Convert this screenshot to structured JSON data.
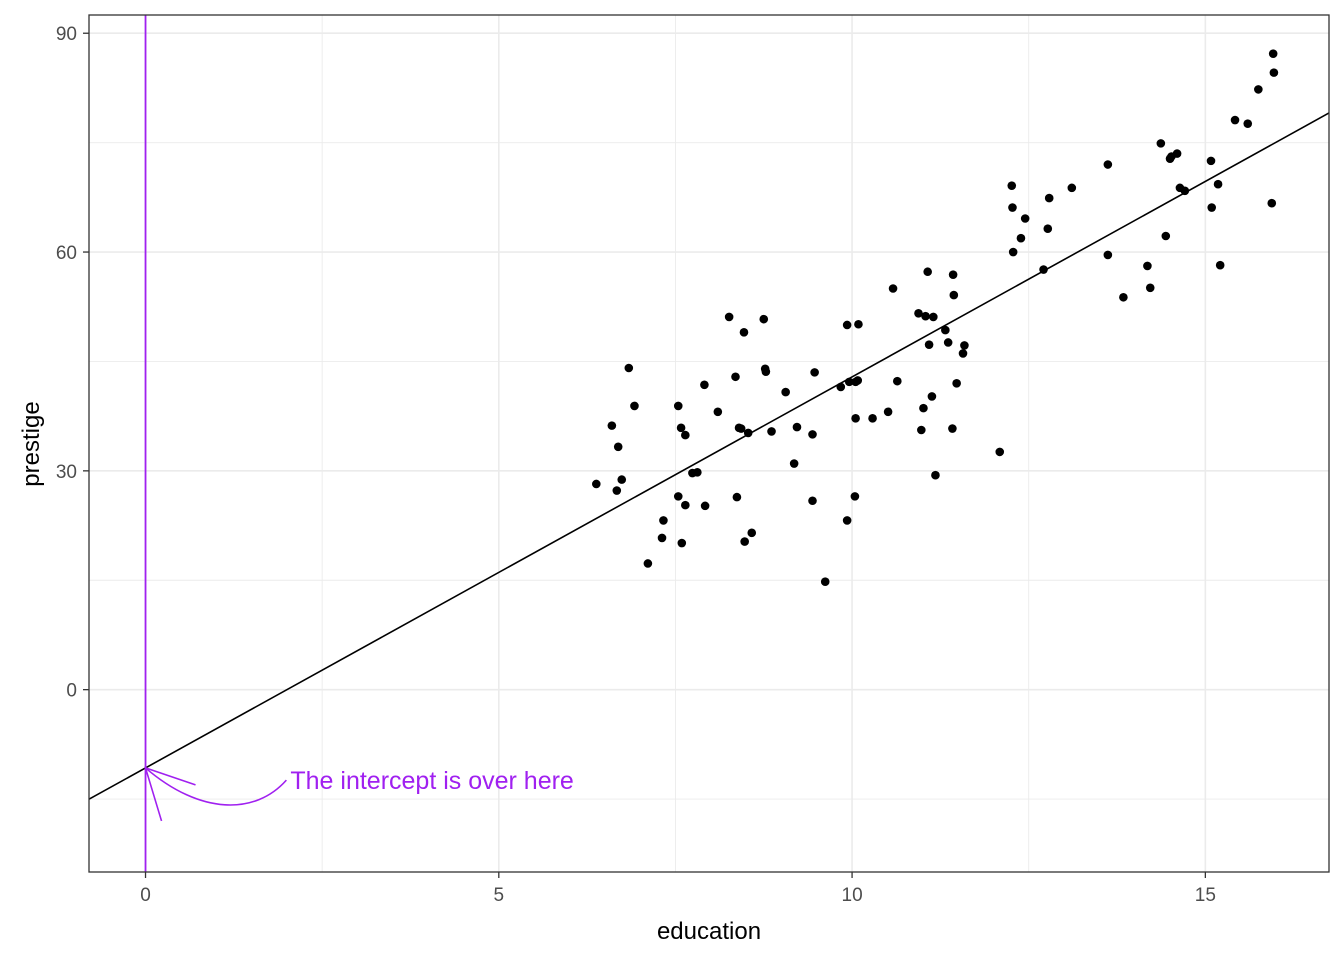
{
  "chart_data": {
    "type": "scatter",
    "xlabel": "education",
    "ylabel": "prestige",
    "xlim": [
      -0.8,
      16.75
    ],
    "ylim": [
      -25,
      92.5
    ],
    "x_ticks": [
      0,
      5,
      10,
      15
    ],
    "x_tick_labels": [
      "0",
      "5",
      "10",
      "15"
    ],
    "y_ticks": [
      0,
      30,
      60,
      90
    ],
    "y_tick_labels": [
      "0",
      "30",
      "60",
      "90"
    ],
    "grid": true,
    "points": [
      [
        6.38,
        28.2
      ],
      [
        6.6,
        36.2
      ],
      [
        6.67,
        27.3
      ],
      [
        6.69,
        33.3
      ],
      [
        6.74,
        28.8
      ],
      [
        6.84,
        44.1
      ],
      [
        6.92,
        38.9
      ],
      [
        7.11,
        17.3
      ],
      [
        7.31,
        20.8
      ],
      [
        7.33,
        23.2
      ],
      [
        7.54,
        38.9
      ],
      [
        7.58,
        35.9
      ],
      [
        7.59,
        20.1
      ],
      [
        7.64,
        34.9
      ],
      [
        7.64,
        25.3
      ],
      [
        7.54,
        26.5
      ],
      [
        7.74,
        29.7
      ],
      [
        7.81,
        29.8
      ],
      [
        7.91,
        41.8
      ],
      [
        7.92,
        25.2
      ],
      [
        8.1,
        38.1
      ],
      [
        8.26,
        51.1
      ],
      [
        8.35,
        42.9
      ],
      [
        8.37,
        26.4
      ],
      [
        8.4,
        35.9
      ],
      [
        8.43,
        35.8
      ],
      [
        8.47,
        49.0
      ],
      [
        8.48,
        20.3
      ],
      [
        8.53,
        35.2
      ],
      [
        8.58,
        21.5
      ],
      [
        8.75,
        50.8
      ],
      [
        8.78,
        43.6
      ],
      [
        8.77,
        44.0
      ],
      [
        8.86,
        35.4
      ],
      [
        9.06,
        40.8
      ],
      [
        9.18,
        31.0
      ],
      [
        9.22,
        36.0
      ],
      [
        9.44,
        35.0
      ],
      [
        9.44,
        25.9
      ],
      [
        9.47,
        43.5
      ],
      [
        9.62,
        14.8
      ],
      [
        9.84,
        41.5
      ],
      [
        9.93,
        50.0
      ],
      [
        9.93,
        23.2
      ],
      [
        9.96,
        42.2
      ],
      [
        10.04,
        26.5
      ],
      [
        10.05,
        42.2
      ],
      [
        10.05,
        37.2
      ],
      [
        10.08,
        42.4
      ],
      [
        10.09,
        50.1
      ],
      [
        10.29,
        37.2
      ],
      [
        10.51,
        38.1
      ],
      [
        10.58,
        55.0
      ],
      [
        10.64,
        42.3
      ],
      [
        10.94,
        51.6
      ],
      [
        10.98,
        35.6
      ],
      [
        11.01,
        38.6
      ],
      [
        11.04,
        51.2
      ],
      [
        11.07,
        57.3
      ],
      [
        11.09,
        47.3
      ],
      [
        11.13,
        40.2
      ],
      [
        11.15,
        51.1
      ],
      [
        11.18,
        29.4
      ],
      [
        11.32,
        49.3
      ],
      [
        11.36,
        47.6
      ],
      [
        11.42,
        35.8
      ],
      [
        11.43,
        56.9
      ],
      [
        11.44,
        54.1
      ],
      [
        11.48,
        42.0
      ],
      [
        11.57,
        46.1
      ],
      [
        11.59,
        47.2
      ],
      [
        12.09,
        32.6
      ],
      [
        12.26,
        69.1
      ],
      [
        12.27,
        66.1
      ],
      [
        12.28,
        60.0
      ],
      [
        12.39,
        61.9
      ],
      [
        12.45,
        64.6
      ],
      [
        12.71,
        57.6
      ],
      [
        12.77,
        63.2
      ],
      [
        12.79,
        67.4
      ],
      [
        13.11,
        68.8
      ],
      [
        13.62,
        72.0
      ],
      [
        13.62,
        59.6
      ],
      [
        13.84,
        53.8
      ],
      [
        14.18,
        58.1
      ],
      [
        14.22,
        55.1
      ],
      [
        14.37,
        74.9
      ],
      [
        14.44,
        62.2
      ],
      [
        14.5,
        72.8
      ],
      [
        14.52,
        73.1
      ],
      [
        14.6,
        73.5
      ],
      [
        14.64,
        68.8
      ],
      [
        14.71,
        68.4
      ],
      [
        15.08,
        72.5
      ],
      [
        15.09,
        66.1
      ],
      [
        15.18,
        69.3
      ],
      [
        15.21,
        58.2
      ],
      [
        15.42,
        78.1
      ],
      [
        15.6,
        77.6
      ],
      [
        15.75,
        82.3
      ],
      [
        15.94,
        66.7
      ],
      [
        15.96,
        87.2
      ],
      [
        15.97,
        84.6
      ]
    ],
    "fit_line": {
      "intercept": -10.73,
      "slope": 5.361
    },
    "reference_line": {
      "x": 0,
      "color": "#a020f0"
    },
    "colors": {
      "points": "#000000",
      "fit_line": "#000000",
      "annotation": "#a020f0",
      "grid": "#ebebeb",
      "panel_border": "#333333",
      "ticks": "#4d4d4d"
    },
    "annotations": [
      {
        "text": "The intercept is over here",
        "x": 2.05,
        "y": -12.4,
        "color": "#a020f0"
      }
    ]
  }
}
